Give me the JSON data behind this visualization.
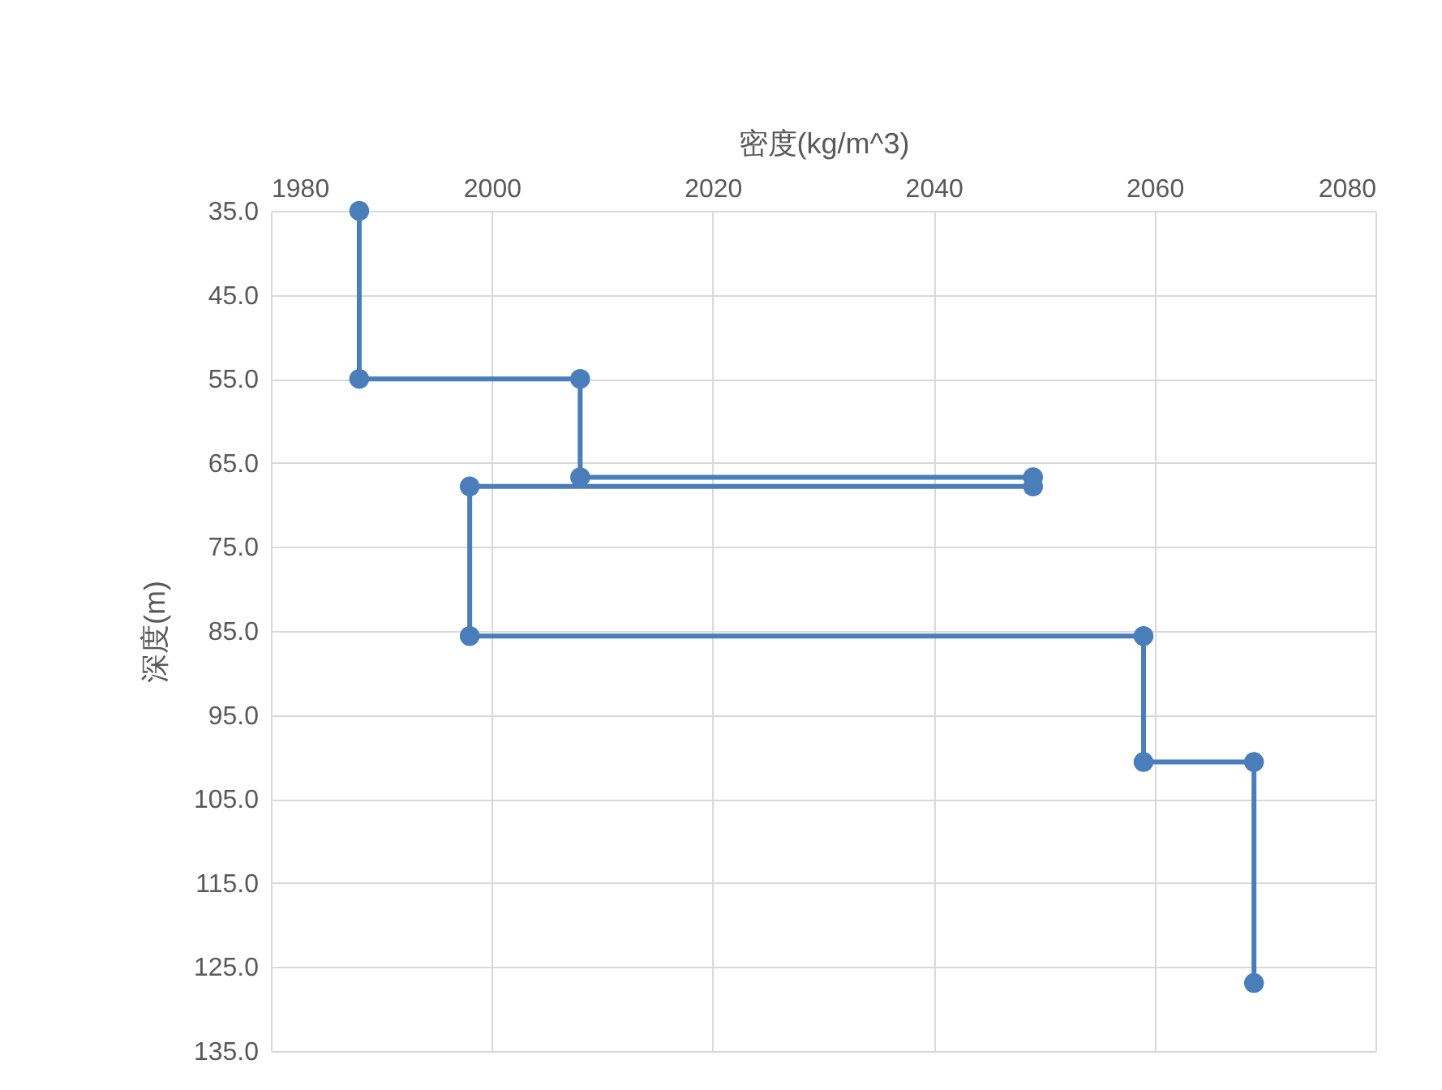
{
  "chart_data": {
    "type": "line",
    "xlabel": "密度(kg/m^3)",
    "ylabel": "深度(m)",
    "series": [
      {
        "color": "#4a7ebb",
        "x": [
          1988,
          1988,
          2008,
          2008,
          2049,
          2049,
          1998,
          1998,
          2059,
          2059,
          2069,
          2069
        ],
        "values": [
          35,
          55,
          55,
          66.7,
          66.7,
          67.8,
          67.8,
          85.6,
          85.6,
          100.6,
          100.6,
          126.9
        ]
      }
    ],
    "xlim": [
      1980,
      2080
    ],
    "xticks": [
      1980,
      2000,
      2020,
      2040,
      2060,
      2080
    ],
    "ylim": [
      135,
      35
    ],
    "yticks": [
      {
        "value": 35,
        "label": "35.0"
      },
      {
        "value": 45,
        "label": "45.0"
      },
      {
        "value": 55,
        "label": "55.0"
      },
      {
        "value": 65,
        "label": "65.0"
      },
      {
        "value": 75,
        "label": "75.0"
      },
      {
        "value": 85,
        "label": "85.0"
      },
      {
        "value": 95,
        "label": "95.0"
      },
      {
        "value": 105,
        "label": "105.0"
      },
      {
        "value": 115,
        "label": "115.0"
      },
      {
        "value": 125,
        "label": "125.0"
      },
      {
        "value": 135,
        "label": "135.0"
      }
    ],
    "grid": true,
    "marker": "circle",
    "line_style": "solid"
  }
}
